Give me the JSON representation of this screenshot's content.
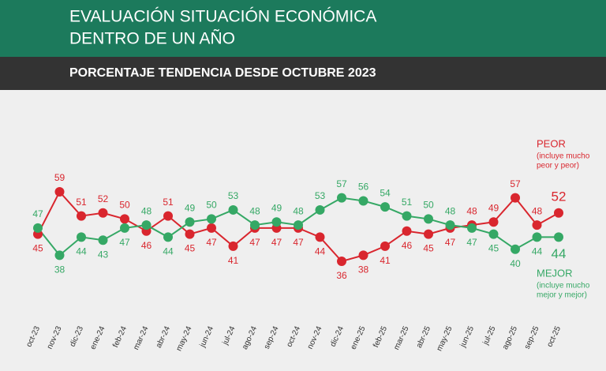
{
  "chart_data": {
    "type": "line",
    "title_lines": [
      "EVALUACIÓN SITUACIÓN ECONÓMICA",
      "DENTRO DE UN AÑO"
    ],
    "subtitle": "PORCENTAJE TENDENCIA DESDE OCTUBRE 2023",
    "categories": [
      "oct-23",
      "nov-23",
      "dic-23",
      "ene-24",
      "feb-24",
      "mar-24",
      "abr-24",
      "may-24",
      "jun-24",
      "jul-24",
      "ago-24",
      "sep-24",
      "oct-24",
      "nov-24",
      "dic-24",
      "ene-25",
      "feb-25",
      "mar-25",
      "abr-25",
      "may-25",
      "jun-25",
      "jul-25",
      "ago-25",
      "sep-25",
      "oct-25"
    ],
    "series": [
      {
        "name": "PEOR",
        "note": [
          "(incluye mucho",
          "peor y peor)"
        ],
        "color": "#d9262e",
        "values": [
          45,
          59,
          51,
          52,
          50,
          46,
          51,
          45,
          47,
          41,
          47,
          47,
          47,
          44,
          36,
          38,
          41,
          46,
          45,
          47,
          48,
          49,
          57,
          48,
          52
        ]
      },
      {
        "name": "MEJOR",
        "note": [
          "(incluye mucho",
          "mejor y mejor)"
        ],
        "color": "#35a865",
        "values": [
          47,
          38,
          44,
          43,
          47,
          48,
          44,
          49,
          50,
          53,
          48,
          49,
          48,
          53,
          57,
          56,
          54,
          51,
          50,
          48,
          47,
          45,
          40,
          44,
          44
        ]
      }
    ],
    "ylim": [
      30,
      65
    ]
  }
}
